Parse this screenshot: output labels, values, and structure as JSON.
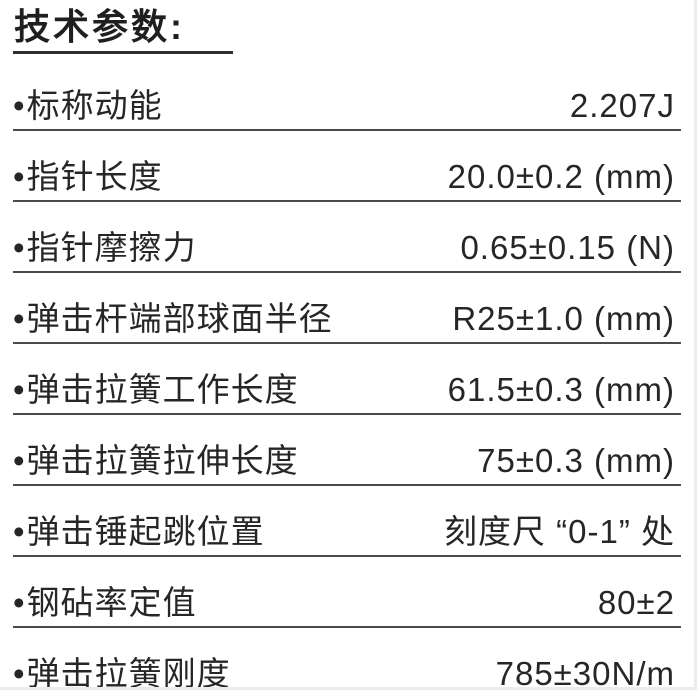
{
  "page": {
    "title": "技术参数:"
  },
  "bullet": "•",
  "colors": {
    "text": "#262626",
    "rule": "#4a4a4e",
    "title_underline": "#2e2e2e"
  },
  "parameters": [
    {
      "label": "标称动能",
      "value": "2.207J"
    },
    {
      "label": "指针长度",
      "value": "20.0±0.2 (mm)"
    },
    {
      "label": "指针摩擦力",
      "value": "0.65±0.15 (N)"
    },
    {
      "label": "弹击杆端部球面半径",
      "value": "R25±1.0 (mm)"
    },
    {
      "label": "弹击拉簧工作长度",
      "value": "61.5±0.3 (mm)"
    },
    {
      "label": "弹击拉簧拉伸长度",
      "value": "75±0.3 (mm)"
    },
    {
      "label": "弹击锤起跳位置",
      "value": "刻度尺 “0-1” 处"
    },
    {
      "label": "钢砧率定值",
      "value": "80±2"
    },
    {
      "label": "弹击拉簧刚度",
      "value": "785±30N/m"
    }
  ]
}
